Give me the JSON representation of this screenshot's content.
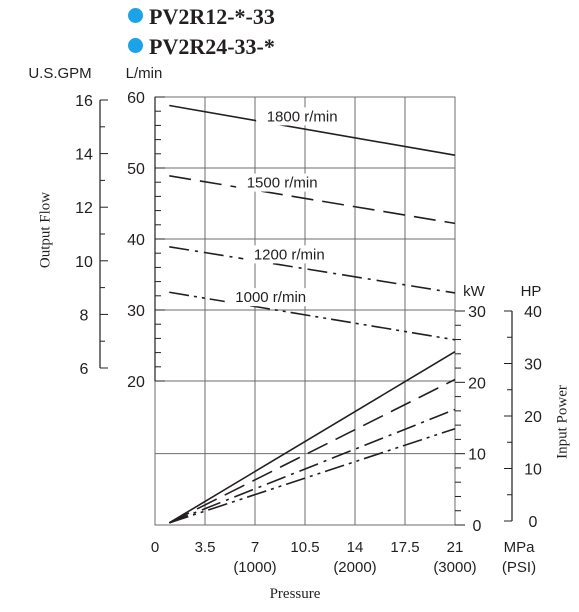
{
  "legend": [
    {
      "label": "PV2R12-*-33",
      "marker_color": "#1aa3e8"
    },
    {
      "label": "PV2R24-33-*",
      "marker_color": "#1aa3e8"
    }
  ],
  "chart_data": {
    "type": "line",
    "xlabel": "Pressure",
    "x_units": [
      "MPa",
      "(PSI)"
    ],
    "x_ticks": [
      {
        "value": 0,
        "label": "0",
        "sub": ""
      },
      {
        "value": 3.5,
        "label": "3.5",
        "sub": ""
      },
      {
        "value": 7,
        "label": "7",
        "sub": "(1000)"
      },
      {
        "value": 10.5,
        "label": "10.5",
        "sub": ""
      },
      {
        "value": 14,
        "label": "14",
        "sub": "(2000)"
      },
      {
        "value": 17.5,
        "label": "17.5",
        "sub": ""
      },
      {
        "value": 21,
        "label": "21",
        "sub": "(3000)"
      }
    ],
    "xlim": [
      0,
      21
    ],
    "flow_axis": {
      "ylabel": "Output Flow",
      "unit_primary": "L/min",
      "unit_secondary": "U.S.GPM",
      "ticks_primary": [
        20,
        30,
        40,
        50,
        60
      ],
      "ticks_secondary": [
        6,
        8,
        10,
        12,
        14,
        16
      ]
    },
    "power_axis": {
      "ylabel": "Input Power",
      "unit_primary": "kW",
      "unit_secondary": "HP",
      "ticks_primary": [
        0,
        10,
        20,
        30
      ],
      "ticks_secondary": [
        0,
        10,
        20,
        30,
        40
      ]
    },
    "flow_series": [
      {
        "name": "1800 r/min",
        "style": "solid",
        "points": [
          [
            1,
            58.8
          ],
          [
            21,
            51.8
          ]
        ]
      },
      {
        "name": "1500 r/min",
        "style": "dash",
        "points": [
          [
            1,
            48.9
          ],
          [
            21,
            42.2
          ]
        ]
      },
      {
        "name": "1200 r/min",
        "style": "dashdot",
        "points": [
          [
            1,
            38.9
          ],
          [
            21,
            32.4
          ]
        ]
      },
      {
        "name": "1000 r/min",
        "style": "dashdotdot",
        "points": [
          [
            1,
            32.5
          ],
          [
            21,
            25.8
          ]
        ]
      }
    ],
    "power_series": [
      {
        "name": "1800 r/min",
        "style": "solid",
        "points": [
          [
            1,
            0.3
          ],
          [
            21,
            24.3
          ]
        ]
      },
      {
        "name": "1500 r/min",
        "style": "dash",
        "points": [
          [
            1,
            0.3
          ],
          [
            21,
            20.4
          ]
        ]
      },
      {
        "name": "1200 r/min",
        "style": "dashdot",
        "points": [
          [
            1,
            0.3
          ],
          [
            21,
            16.2
          ]
        ]
      },
      {
        "name": "1000 r/min",
        "style": "dashdotdot",
        "points": [
          [
            1,
            0.3
          ],
          [
            21,
            13.5
          ]
        ]
      }
    ],
    "grid": true
  }
}
